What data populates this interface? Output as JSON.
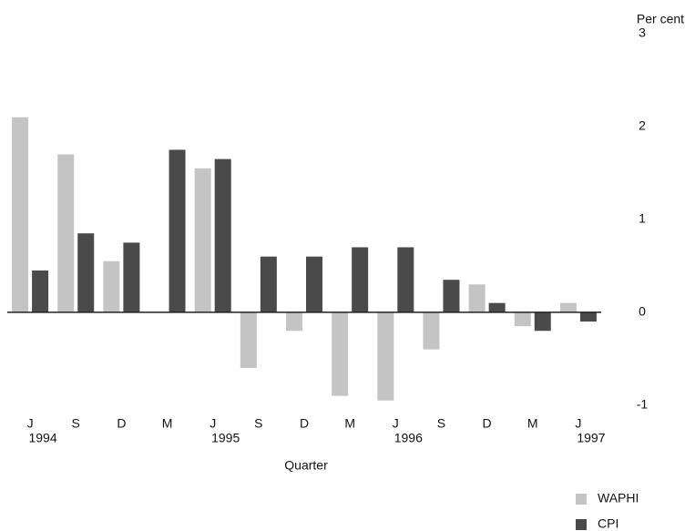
{
  "chart_data": {
    "type": "bar",
    "y_label": "Per cent",
    "x_label": "Quarter",
    "categories": [
      "J",
      "S",
      "D",
      "M",
      "J",
      "S",
      "D",
      "M",
      "J",
      "S",
      "D",
      "M",
      "J"
    ],
    "years": [
      "1994",
      null,
      null,
      null,
      "1995",
      null,
      null,
      null,
      "1996",
      null,
      null,
      null,
      "1997"
    ],
    "series": [
      {
        "name": "WAPHI",
        "color": "#c4c4c4",
        "values": [
          2.1,
          1.7,
          0.55,
          0,
          1.55,
          -0.6,
          -0.2,
          -0.9,
          -0.95,
          -0.4,
          0.3,
          -0.15,
          0.1
        ]
      },
      {
        "name": "CPI",
        "color": "#4a4a4a",
        "values": [
          0.45,
          0.85,
          0.75,
          1.75,
          1.65,
          0.6,
          0.6,
          0.7,
          0.7,
          0.35,
          0.1,
          -0.2,
          -0.1
        ]
      }
    ],
    "ylim": [
      -1.1,
      3
    ],
    "yticks": [
      -1,
      0,
      1,
      2,
      3
    ],
    "grid": false
  }
}
